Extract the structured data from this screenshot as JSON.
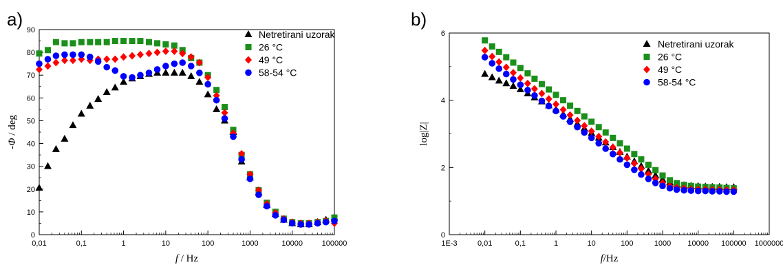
{
  "chart_data": [
    {
      "type": "scatter",
      "panel_label": "a)",
      "title": "",
      "xlabel_italic": "f",
      "xlabel_unit": " / Hz",
      "ylabel_prefix": "-",
      "ylabel_italic": "Φ",
      "ylabel_unit": " / deg",
      "xscale": "log",
      "xlim": [
        0.01,
        100000
      ],
      "ylim": [
        0,
        90
      ],
      "xticks": [
        0.01,
        0.1,
        1,
        10,
        100,
        1000,
        10000,
        100000
      ],
      "xtick_labels": [
        "0,01",
        "0,1",
        "1",
        "10",
        "100",
        "1000",
        "10000",
        "100000"
      ],
      "yticks": [
        0,
        10,
        20,
        30,
        40,
        50,
        60,
        70,
        80,
        90
      ],
      "ytick_labels": [
        "0",
        "10",
        "20",
        "30",
        "40",
        "50",
        "60",
        "70",
        "80",
        "90"
      ],
      "grid": false,
      "legend_position": "top-right",
      "x": [
        0.01,
        0.016,
        0.025,
        0.04,
        0.063,
        0.1,
        0.16,
        0.25,
        0.4,
        0.63,
        1,
        1.6,
        2.5,
        4,
        6.3,
        10,
        16,
        25,
        40,
        63,
        100,
        160,
        250,
        400,
        630,
        1000,
        1600,
        2500,
        4000,
        6300,
        10000,
        16000,
        25000,
        40000,
        63000,
        100000
      ],
      "series": [
        {
          "name": "Netretirani uzorak",
          "color": "#000000",
          "marker": "triangle",
          "values": [
            20.5,
            30,
            37.5,
            42,
            48,
            53,
            56.5,
            59.5,
            62.5,
            64.5,
            67,
            68.5,
            69.5,
            70.5,
            71,
            71,
            71,
            71,
            69.5,
            67,
            61.5,
            55,
            50,
            45,
            32,
            25,
            18.5,
            13,
            9,
            6.5,
            5,
            4.5,
            4.5,
            5.5,
            6.5,
            7.5
          ]
        },
        {
          "name": "26 °C",
          "color": "#1a8f1a",
          "marker": "square",
          "values": [
            79.5,
            81,
            84.5,
            84,
            84,
            84.5,
            84.5,
            84.5,
            84.5,
            85,
            85,
            85,
            85,
            84.5,
            84,
            83.5,
            83,
            81,
            77.5,
            75.5,
            70,
            63.5,
            56,
            46,
            35,
            26.5,
            19.5,
            14,
            10,
            7,
            5.5,
            5,
            5,
            5.5,
            6,
            7.5
          ]
        },
        {
          "name": "49 °C",
          "color": "#ff0000",
          "marker": "diamond",
          "values": [
            72.5,
            74,
            75.5,
            76.5,
            76.5,
            77,
            76.5,
            77,
            77,
            77,
            78,
            78.5,
            79,
            79.5,
            80,
            80.5,
            80.5,
            79.5,
            78,
            75.5,
            69,
            61,
            53.5,
            44.5,
            35.5,
            26.5,
            19.5,
            13.5,
            9.5,
            7,
            5.5,
            5,
            5,
            5.5,
            6,
            5
          ]
        },
        {
          "name": "58-54 °C",
          "color": "#0000ff",
          "marker": "circle",
          "values": [
            75,
            77,
            78.5,
            79,
            79,
            79,
            78,
            76,
            73.5,
            72,
            69.5,
            69,
            70,
            71,
            72.5,
            74,
            75,
            75.5,
            74,
            71,
            66,
            59,
            51,
            43,
            33,
            24.5,
            17.5,
            12.5,
            8.5,
            6.5,
            5,
            4.5,
            4.5,
            5,
            5.5,
            6
          ]
        }
      ]
    },
    {
      "type": "scatter",
      "panel_label": "b)",
      "title": "",
      "xlabel_italic": "f",
      "xlabel_unit": "/Hz",
      "ylabel": "log|Z|",
      "xscale": "log",
      "xlim": [
        0.001,
        1000000
      ],
      "ylim": [
        0,
        6
      ],
      "xticks": [
        0.001,
        0.01,
        0.1,
        1,
        10,
        100,
        1000,
        10000,
        100000,
        1000000
      ],
      "xtick_labels": [
        "1E-3",
        "0,01",
        "0,1",
        "1",
        "10",
        "100",
        "1000",
        "10000",
        "100000",
        "1000000"
      ],
      "yticks": [
        0,
        2,
        4,
        6
      ],
      "ytick_labels": [
        "0",
        "2",
        "4",
        "6"
      ],
      "grid": false,
      "legend_position": "top-right",
      "x": [
        0.01,
        0.016,
        0.025,
        0.04,
        0.063,
        0.1,
        0.16,
        0.25,
        0.4,
        0.63,
        1,
        1.6,
        2.5,
        4,
        6.3,
        10,
        16,
        25,
        40,
        63,
        100,
        160,
        250,
        400,
        630,
        1000,
        1600,
        2500,
        4000,
        6300,
        10000,
        16000,
        25000,
        40000,
        63000,
        100000
      ],
      "series": [
        {
          "name": "Netretirani uzorak",
          "color": "#000000",
          "marker": "triangle",
          "values": [
            4.78,
            4.68,
            4.58,
            4.5,
            4.42,
            4.32,
            4.2,
            4.08,
            3.96,
            3.84,
            3.72,
            3.58,
            3.44,
            3.3,
            3.16,
            3.02,
            2.88,
            2.74,
            2.6,
            2.46,
            2.32,
            2.18,
            2.04,
            1.9,
            1.76,
            1.64,
            1.55,
            1.5,
            1.47,
            1.45,
            1.44,
            1.43,
            1.42,
            1.42,
            1.41,
            1.41
          ]
        },
        {
          "name": "26 °C",
          "color": "#1a8f1a",
          "marker": "square",
          "values": [
            5.78,
            5.6,
            5.44,
            5.28,
            5.12,
            4.96,
            4.8,
            4.64,
            4.48,
            4.32,
            4.16,
            4.0,
            3.84,
            3.68,
            3.52,
            3.36,
            3.2,
            3.04,
            2.88,
            2.72,
            2.56,
            2.4,
            2.24,
            2.08,
            1.92,
            1.76,
            1.62,
            1.53,
            1.48,
            1.45,
            1.43,
            1.42,
            1.41,
            1.4,
            1.39,
            1.38
          ]
        },
        {
          "name": "49 °C",
          "color": "#ff0000",
          "marker": "diamond",
          "values": [
            5.48,
            5.3,
            5.14,
            4.98,
            4.82,
            4.66,
            4.5,
            4.34,
            4.2,
            4.04,
            3.88,
            3.72,
            3.56,
            3.4,
            3.24,
            3.08,
            2.92,
            2.76,
            2.6,
            2.44,
            2.28,
            2.12,
            1.96,
            1.8,
            1.66,
            1.54,
            1.45,
            1.4,
            1.38,
            1.36,
            1.35,
            1.35,
            1.34,
            1.34,
            1.33,
            1.33
          ]
        },
        {
          "name": "58-54 °C",
          "color": "#0000ff",
          "marker": "circle",
          "values": [
            5.28,
            5.1,
            4.94,
            4.78,
            4.62,
            4.46,
            4.3,
            4.14,
            3.98,
            3.83,
            3.68,
            3.52,
            3.36,
            3.2,
            3.04,
            2.88,
            2.72,
            2.56,
            2.4,
            2.24,
            2.08,
            1.93,
            1.79,
            1.66,
            1.54,
            1.45,
            1.38,
            1.34,
            1.32,
            1.31,
            1.3,
            1.3,
            1.29,
            1.29,
            1.28,
            1.28
          ]
        }
      ]
    }
  ]
}
